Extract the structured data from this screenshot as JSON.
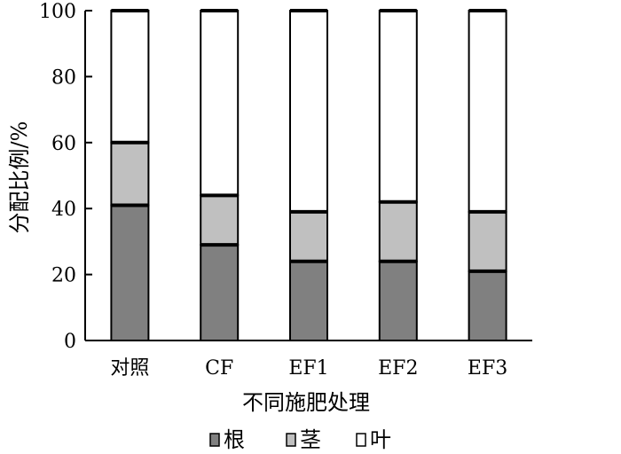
{
  "chart_data": {
    "type": "bar",
    "stacked": true,
    "categories": [
      "对照",
      "CF",
      "EF1",
      "EF2",
      "EF3"
    ],
    "series": [
      {
        "name": "根",
        "values": [
          41,
          29,
          24,
          24,
          21
        ],
        "color": "#808080"
      },
      {
        "name": "茎",
        "values": [
          19,
          15,
          15,
          18,
          18
        ],
        "color": "#c0c0c0"
      },
      {
        "name": "叶",
        "values": [
          40,
          56,
          61,
          58,
          61
        ],
        "color": "#ffffff"
      }
    ],
    "xlabel": "不同施肥处理",
    "ylabel": "分配比例/%",
    "ylim": [
      0,
      100
    ],
    "yticks": [
      0,
      20,
      40,
      60,
      80,
      100
    ],
    "grid": false,
    "legend_position": "bottom"
  }
}
